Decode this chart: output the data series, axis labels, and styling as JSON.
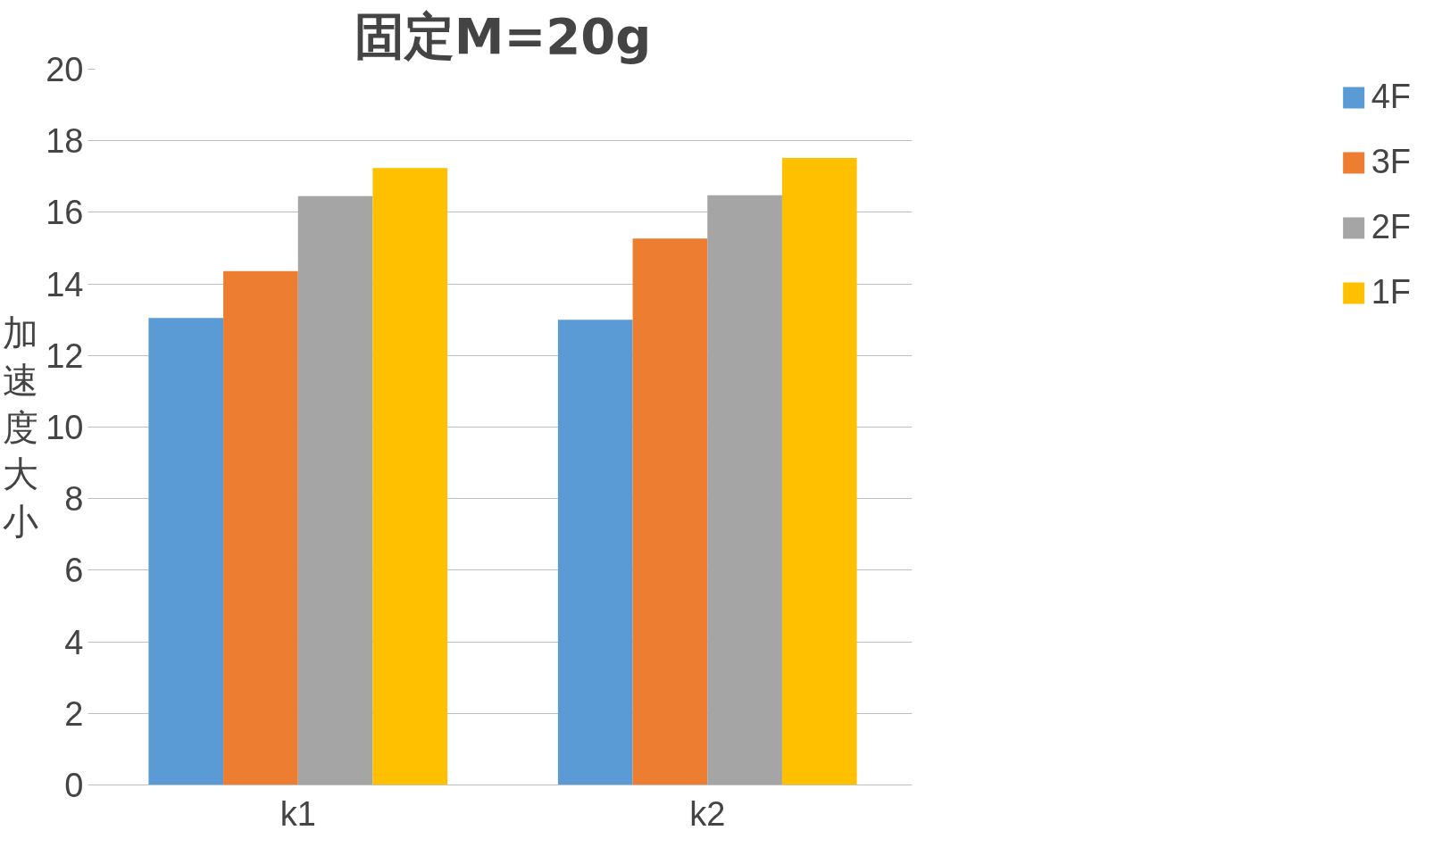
{
  "chart_data": {
    "type": "bar",
    "title": "固定M=20g",
    "ylabel": "加速度大小",
    "categories": [
      "k1",
      "k2"
    ],
    "series": [
      {
        "name": "4F",
        "color": "#5b9bd5",
        "values": [
          13.05,
          13.0
        ]
      },
      {
        "name": "3F",
        "color": "#ed7d31",
        "values": [
          14.36,
          15.27
        ]
      },
      {
        "name": "2F",
        "color": "#a5a5a5",
        "values": [
          16.45,
          16.48
        ]
      },
      {
        "name": "1F",
        "color": "#ffc000",
        "values": [
          17.24,
          17.52
        ]
      }
    ],
    "ylim": [
      0,
      20
    ],
    "yticks": [
      0,
      2,
      4,
      6,
      8,
      10,
      12,
      14,
      16,
      18,
      20
    ],
    "grid": "y",
    "legend": "right"
  }
}
